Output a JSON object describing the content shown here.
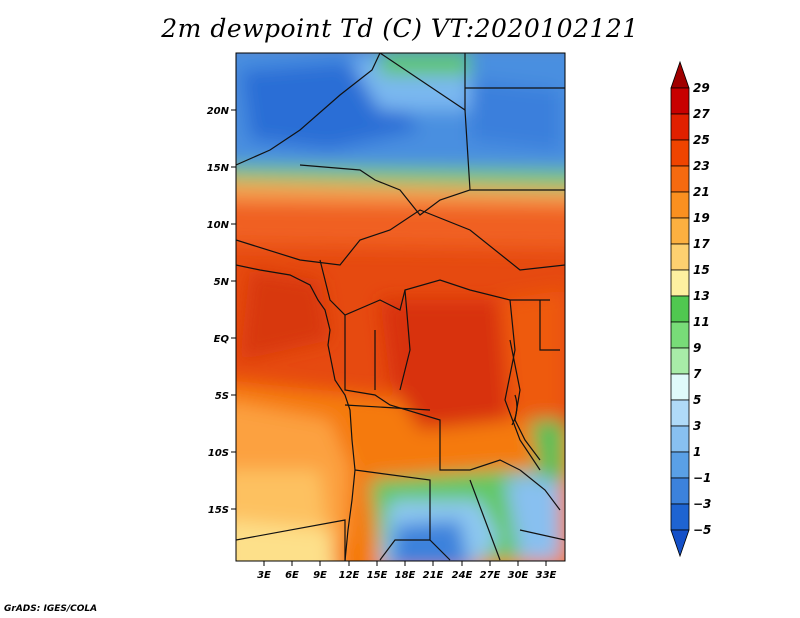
{
  "title": "2m dewpoint Td (C) VT:2020102121",
  "credit": "GrADS: IGES/COLA",
  "y_ticks": [
    "20N",
    "15N",
    "10N",
    "5N",
    "EQ",
    "5S",
    "10S",
    "15S"
  ],
  "x_ticks": [
    "3E",
    "6E",
    "9E",
    "12E",
    "15E",
    "18E",
    "21E",
    "24E",
    "27E",
    "30E",
    "33E"
  ],
  "colorbar": {
    "labels": [
      "29",
      "27",
      "25",
      "23",
      "21",
      "19",
      "17",
      "15",
      "13",
      "11",
      "9",
      "7",
      "5",
      "3",
      "1",
      "−1",
      "−3",
      "−5"
    ],
    "colors_top_to_bottom": [
      "#a00000",
      "#c80000",
      "#e12000",
      "#ef4400",
      "#f56a10",
      "#fa9020",
      "#fcb040",
      "#fdd070",
      "#fdf0a0",
      "#50c850",
      "#78dc78",
      "#a8eca8",
      "#e0fafa",
      "#b0daf8",
      "#88c0f0",
      "#5aa0e6",
      "#3c82dc",
      "#1e64d2",
      "#1450c8"
    ]
  }
}
